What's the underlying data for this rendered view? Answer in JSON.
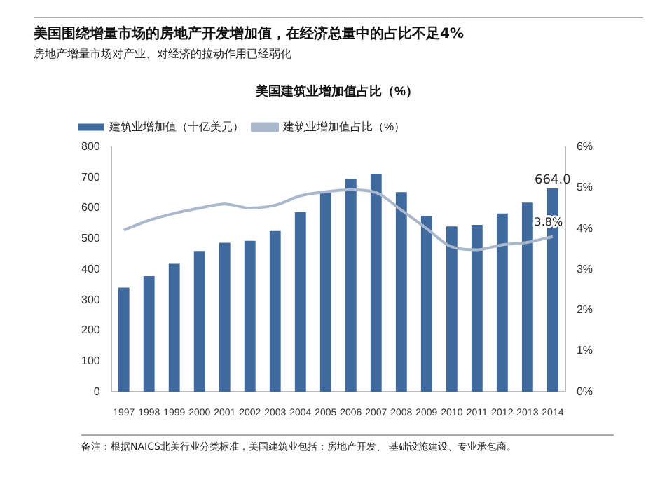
{
  "chart_data": {
    "type": "bar",
    "title": "美国建筑业增加值占比（%）",
    "annotations": [
      "美国围绕增量市场的房地产开发增加值，在经济总量中的占比不足4%",
      "房地产增量市场对产业、对经济的拉动作用已经弱化",
      "备注：根据NAICS北美行业分类标准，美国建筑业包括：房地产开发、 基础设施建设、专业承包商。"
    ],
    "categories": [
      "1997",
      "1998",
      "1999",
      "2000",
      "2001",
      "2002",
      "2003",
      "2004",
      "2005",
      "2006",
      "2007",
      "2008",
      "2009",
      "2010",
      "2011",
      "2012",
      "2013",
      "2014"
    ],
    "series": [
      {
        "name": "建筑业增加值（十亿美元）",
        "color": "#3f6aa0",
        "values": [
          340,
          378,
          418,
          460,
          487,
          493,
          525,
          587,
          650,
          695,
          712,
          652,
          575,
          540,
          545,
          582,
          618,
          664
        ],
        "value_labels": [
          null,
          null,
          null,
          null,
          null,
          null,
          null,
          null,
          null,
          null,
          null,
          null,
          null,
          null,
          null,
          null,
          null,
          "664.0"
        ]
      },
      {
        "name": "建筑业增加值占比（%）",
        "type": "line",
        "axis": "y2",
        "color": "#a9b8cc",
        "values": [
          3.96,
          4.2,
          4.37,
          4.5,
          4.6,
          4.5,
          4.57,
          4.8,
          4.9,
          4.95,
          4.88,
          4.45,
          4.0,
          3.55,
          3.48,
          3.6,
          3.66,
          3.8
        ],
        "value_labels": [
          null,
          null,
          null,
          null,
          null,
          null,
          null,
          null,
          null,
          null,
          null,
          null,
          null,
          null,
          null,
          null,
          null,
          "3.8%"
        ]
      }
    ],
    "ylim": [
      0,
      800
    ],
    "yticks": [
      0,
      100,
      200,
      300,
      400,
      500,
      600,
      700,
      800
    ],
    "y2lim": [
      0,
      6
    ],
    "y2ticks": [
      {
        "value": 0,
        "label": "0%"
      },
      {
        "value": 1,
        "label": "1%"
      },
      {
        "value": 2,
        "label": "2%"
      },
      {
        "value": 3,
        "label": "3%"
      },
      {
        "value": 4,
        "label": "4%"
      },
      {
        "value": 5,
        "label": "5%"
      },
      {
        "value": 6,
        "label": "6%"
      }
    ],
    "legend": "top left",
    "grid": false,
    "marker": "none"
  }
}
